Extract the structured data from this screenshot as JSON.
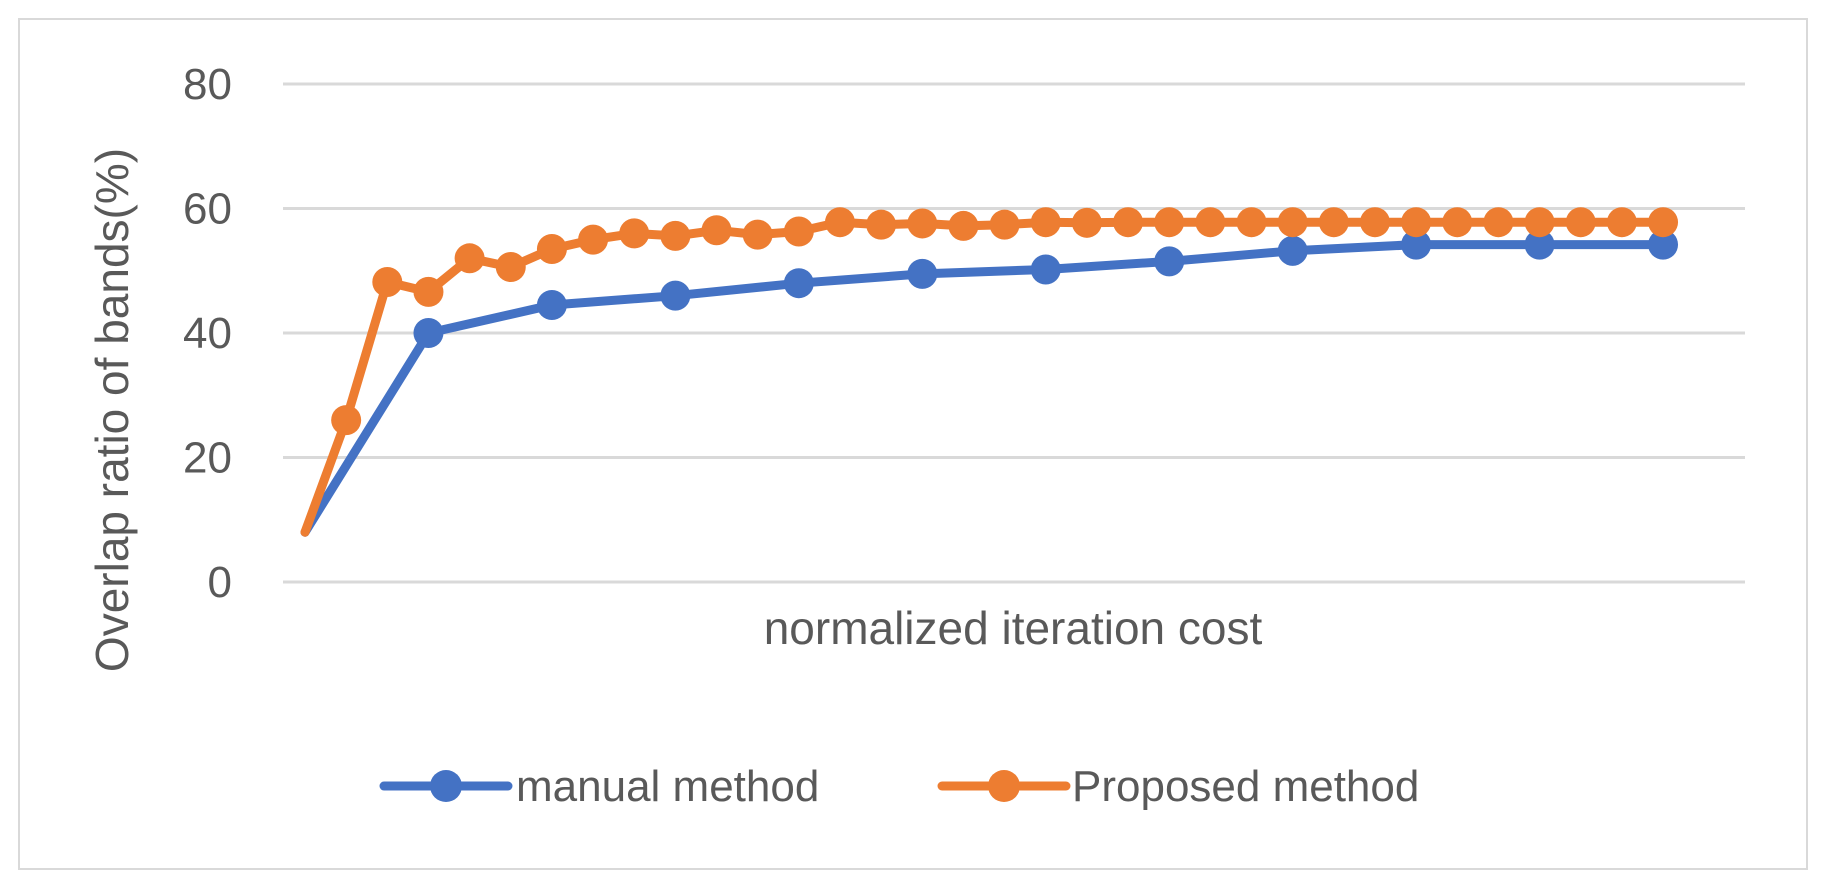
{
  "chart_data": {
    "type": "line",
    "title": "",
    "xlabel": "normalized iteration cost",
    "ylabel": "Overlap ratio of bands(%)",
    "ylim": [
      0,
      80
    ],
    "yticks": [
      0,
      20,
      40,
      60,
      80
    ],
    "xlim": [
      0,
      1
    ],
    "grid": true,
    "legend_position": "bottom",
    "series": [
      {
        "name": "manual method",
        "color": "#4472C4",
        "x": [
          0,
          0.0885,
          0.177,
          0.2655,
          0.354,
          0.4425,
          0.531,
          0.6195,
          0.708,
          0.7965,
          0.885,
          0.9735
        ],
        "y": [
          8,
          40,
          44.5,
          46,
          48,
          49.5,
          50.2,
          51.5,
          53.2,
          54.2,
          54.2,
          54.2
        ]
      },
      {
        "name": "Proposed method",
        "color": "#ED7D31",
        "x": [
          0,
          0.0295,
          0.059,
          0.0885,
          0.118,
          0.1475,
          0.177,
          0.2065,
          0.236,
          0.2655,
          0.295,
          0.3245,
          0.354,
          0.3835,
          0.413,
          0.4425,
          0.472,
          0.5015,
          0.531,
          0.5605,
          0.59,
          0.6195,
          0.649,
          0.6785,
          0.708,
          0.7375,
          0.767,
          0.7965,
          0.826,
          0.8555,
          0.885,
          0.9145,
          0.944,
          0.9735
        ],
        "y": [
          8,
          26,
          48.2,
          46.6,
          52,
          50.6,
          53.5,
          55,
          56,
          55.6,
          56.5,
          55.8,
          56.3,
          57.8,
          57.4,
          57.6,
          57.2,
          57.4,
          57.8,
          57.7,
          57.8,
          57.8,
          57.8,
          57.8,
          57.8,
          57.8,
          57.8,
          57.8,
          57.8,
          57.8,
          57.8,
          57.8,
          57.8,
          57.8
        ]
      }
    ]
  }
}
